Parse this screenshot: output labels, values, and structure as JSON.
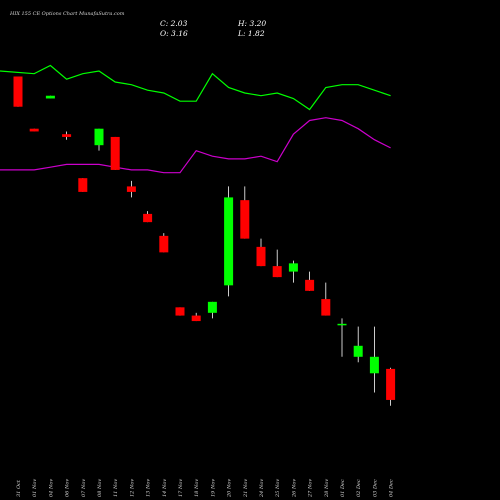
{
  "chart_data": {
    "type": "candlestick",
    "title": "HIX  155 CE Options  Chart MunafaSutra.com",
    "ohlc": {
      "c": "C: 2.03",
      "h": "H: 3.20",
      "o": "O: 3.16",
      "l": "L: 1.82"
    },
    "dates": [
      "31 Oct",
      "01 Nov",
      "04 Nov",
      "06 Nov",
      "07 Nov",
      "08 Nov",
      "11 Nov",
      "12 Nov",
      "13 Nov",
      "14 Nov",
      "17 Nov",
      "18 Nov",
      "19 Nov",
      "20 Nov",
      "21 Nov",
      "24 Nov",
      "25 Nov",
      "26 Nov",
      "27 Nov",
      "28 Nov",
      "01 Dec",
      "02 Dec",
      "03 Dec",
      "04 Dec"
    ],
    "colors": {
      "background": "#000000",
      "up": "#00ff00",
      "down": "#ff0000",
      "line1": "#00ff00",
      "line2": "#cc00cc"
    },
    "ylim": [
      1.3,
      14.4
    ],
    "candles": [
      {
        "o": 13.8,
        "h": 13.8,
        "l": 12.7,
        "c": 12.7
      },
      {
        "o": 11.9,
        "h": 11.9,
        "l": 11.8,
        "c": 11.8
      },
      {
        "o": 13.0,
        "h": 13.1,
        "l": 13.0,
        "c": 13.1
      },
      {
        "o": 11.7,
        "h": 11.8,
        "l": 11.5,
        "c": 11.6
      },
      {
        "o": 10.1,
        "h": 10.1,
        "l": 9.6,
        "c": 9.6
      },
      {
        "o": 11.3,
        "h": 11.9,
        "l": 11.1,
        "c": 11.9
      },
      {
        "o": 11.6,
        "h": 11.6,
        "l": 10.4,
        "c": 10.4
      },
      {
        "o": 9.8,
        "h": 10.0,
        "l": 9.4,
        "c": 9.6
      },
      {
        "o": 8.8,
        "h": 8.9,
        "l": 8.5,
        "c": 8.5
      },
      {
        "o": 8.0,
        "h": 8.1,
        "l": 7.4,
        "c": 7.4
      },
      {
        "o": 5.4,
        "h": 5.4,
        "l": 5.1,
        "c": 5.1
      },
      {
        "o": 5.1,
        "h": 5.2,
        "l": 4.9,
        "c": 4.9
      },
      {
        "o": 5.2,
        "h": 5.6,
        "l": 5.0,
        "c": 5.6
      },
      {
        "o": 6.2,
        "h": 9.8,
        "l": 5.8,
        "c": 9.4
      },
      {
        "o": 9.3,
        "h": 9.8,
        "l": 7.9,
        "c": 7.9
      },
      {
        "o": 7.6,
        "h": 7.9,
        "l": 6.9,
        "c": 6.9
      },
      {
        "o": 6.9,
        "h": 7.5,
        "l": 6.5,
        "c": 6.5
      },
      {
        "o": 6.7,
        "h": 7.1,
        "l": 6.3,
        "c": 7.0
      },
      {
        "o": 6.4,
        "h": 6.7,
        "l": 6.0,
        "c": 6.0
      },
      {
        "o": 5.7,
        "h": 6.3,
        "l": 5.1,
        "c": 5.1
      },
      {
        "o": 4.8,
        "h": 5.0,
        "l": 3.6,
        "c": 4.8
      },
      {
        "o": 3.6,
        "h": 4.7,
        "l": 3.4,
        "c": 4.0
      },
      {
        "o": 3.0,
        "h": 4.7,
        "l": 2.3,
        "c": 3.6
      },
      {
        "o": 3.16,
        "h": 3.2,
        "l": 1.82,
        "c": 2.03
      }
    ],
    "line1": [
      14.0,
      13.9,
      14.2,
      13.7,
      13.9,
      14.0,
      13.6,
      13.5,
      13.3,
      13.2,
      12.9,
      12.9,
      13.9,
      13.4,
      13.2,
      13.1,
      13.2,
      13.0,
      12.6,
      13.4,
      13.5,
      13.5,
      13.3,
      13.1
    ],
    "line2": [
      10.4,
      10.4,
      10.5,
      10.6,
      10.6,
      10.6,
      10.5,
      10.4,
      10.4,
      10.3,
      10.3,
      11.1,
      10.9,
      10.8,
      10.8,
      10.9,
      10.7,
      11.7,
      12.2,
      12.3,
      12.2,
      11.9,
      11.5,
      11.2
    ]
  }
}
